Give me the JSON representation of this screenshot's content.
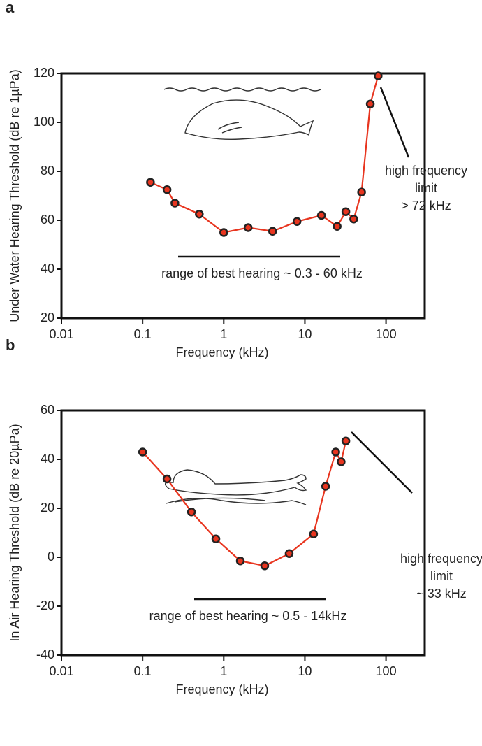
{
  "chart_data": [
    {
      "type": "line",
      "panel": "a",
      "ylabel": "Under Water Hearing Threshold (dB re 1µPa)",
      "xlabel": "Frequency (kHz)",
      "log_x": true,
      "xlim": [
        0.01,
        300
      ],
      "xticks": [
        0.01,
        0.1,
        1,
        10,
        100
      ],
      "ylim": [
        20,
        120
      ],
      "yticks": [
        20,
        40,
        60,
        80,
        100,
        120
      ],
      "x": [
        0.125,
        0.2,
        0.25,
        0.5,
        1,
        2,
        4,
        8,
        16,
        25,
        32,
        40,
        50,
        64,
        80
      ],
      "values": [
        75.5,
        72.5,
        67,
        62.5,
        55,
        57,
        55.5,
        59.5,
        62,
        57.5,
        63.5,
        60.5,
        71.5,
        107.5,
        119
      ],
      "color": "#e8351f",
      "annotation": [
        "high frequency",
        "limit",
        "> 72 kHz"
      ],
      "note": "range of best hearing ~ 0.3 - 60 kHz"
    },
    {
      "type": "line",
      "panel": "b",
      "ylabel": "In Air Hearing Threshold (dB re 20µPa)",
      "xlabel": "Frequency (kHz)",
      "log_x": true,
      "xlim": [
        0.01,
        300
      ],
      "xticks": [
        0.01,
        0.1,
        1,
        10,
        100
      ],
      "ylim": [
        -40,
        60
      ],
      "yticks": [
        -40,
        -20,
        0,
        20,
        40,
        60
      ],
      "x": [
        0.1,
        0.2,
        0.4,
        0.8,
        1.6,
        3.2,
        6.4,
        12.8,
        18,
        24,
        28,
        32
      ],
      "values": [
        43,
        32,
        18.5,
        7.5,
        -1.5,
        -3.5,
        1.5,
        9.5,
        29,
        43,
        39,
        47.5
      ],
      "color": "#e8351f",
      "annotation": [
        "high frequency",
        "limit",
        "~ 33 kHz"
      ],
      "note": "range of best hearing ~ 0.5 - 14kHz"
    }
  ]
}
